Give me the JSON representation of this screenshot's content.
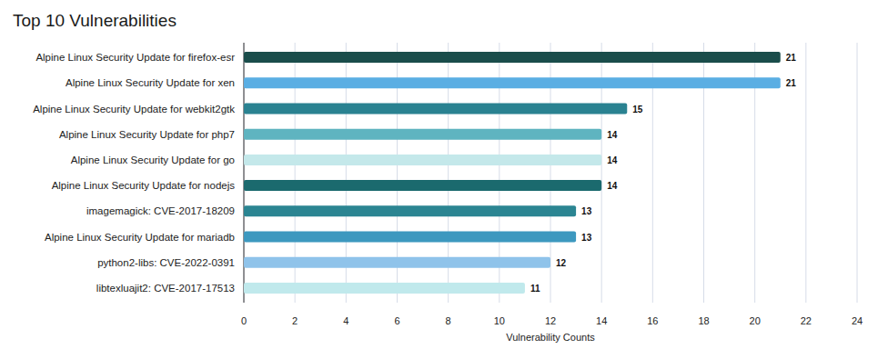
{
  "chart_data": {
    "type": "bar",
    "title": "Top 10 Vulnerabilities",
    "orientation": "horizontal",
    "categories": [
      "Alpine Linux Security Update for firefox-esr",
      "Alpine Linux Security Update for xen",
      "Alpine Linux Security Update for webkit2gtk",
      "Alpine Linux Security Update for php7",
      "Alpine Linux Security Update for go",
      "Alpine Linux Security Update for nodejs",
      "imagemagick: CVE-2017-18209",
      "Alpine Linux Security Update for mariadb",
      "python2-libs: CVE-2022-0391",
      "libtexluajit2: CVE-2017-17513"
    ],
    "values": [
      21,
      21,
      15,
      14,
      14,
      14,
      13,
      13,
      12,
      11
    ],
    "colors": [
      "#1a4d4b",
      "#5aaee3",
      "#2a8291",
      "#5fb4c0",
      "#c4e8ea",
      "#1b6a6e",
      "#2b8592",
      "#3d98bf",
      "#8fc3ea",
      "#c0e9ec"
    ],
    "xlabel": "Vulnerability Counts",
    "xlim": [
      0,
      24
    ],
    "xticks": [
      0,
      2,
      4,
      6,
      8,
      10,
      12,
      14,
      16,
      18,
      20,
      22,
      24
    ],
    "grid": true,
    "data_labels": true
  }
}
